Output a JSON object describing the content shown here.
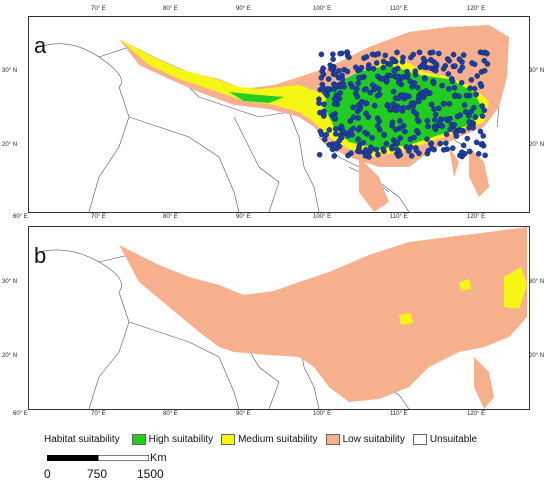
{
  "panels": [
    {
      "letter": "a"
    },
    {
      "letter": "b"
    }
  ],
  "axis": {
    "lon_ticks": [
      "60° E",
      "70° E",
      "80° E",
      "90° E",
      "100° E",
      "110° E",
      "120° E"
    ],
    "lat_ticks": [
      "30° N",
      "20° N"
    ]
  },
  "legend": {
    "title": "Habitat suitability",
    "items": [
      {
        "label": "High suitability",
        "color": "#22cc22"
      },
      {
        "label": "Medium suitability",
        "color": "#f5f516"
      },
      {
        "label": "Low suitability",
        "color": "#f7b08e"
      },
      {
        "label": "Unsuitable",
        "color": "#ffffff"
      }
    ]
  },
  "scalebar": {
    "unit": "Km",
    "labels": [
      "0",
      "750",
      "1500"
    ]
  },
  "colors": {
    "occurrence_point": "#1d3fa0",
    "border": "#444444"
  }
}
